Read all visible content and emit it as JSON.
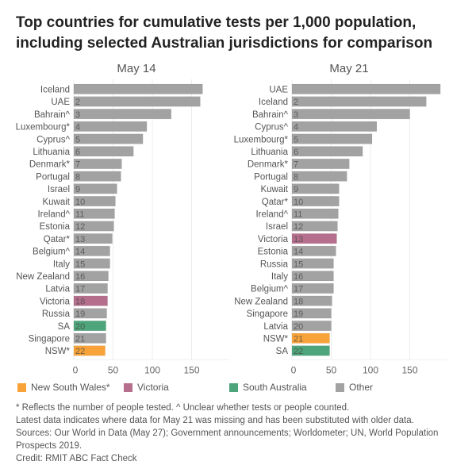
{
  "title_line1": "Top countries for cumulative tests per 1,000 population,",
  "title_line2": "including selected Australian jurisdictions for comparison",
  "colors": {
    "nsw": "#f8a339",
    "victoria": "#b56f8d",
    "sa": "#4fa57b",
    "other": "#a2a2a2",
    "grid": "#ececec"
  },
  "chart_data": [
    {
      "type": "bar",
      "orientation": "horizontal",
      "title": "May 14",
      "xlim": [
        0,
        198
      ],
      "xticks": [
        "0",
        "50",
        "100",
        "150"
      ],
      "grid": true,
      "categories": [
        "Iceland",
        "UAE",
        "Bahrain^",
        "Luxembourg*",
        "Cyprus^",
        "Lithuania",
        "Denmark*",
        "Portugal",
        "Israel",
        "Kuwait",
        "Ireland^",
        "Estonia",
        "Qatar*",
        "Belgium^",
        "Italy",
        "New Zealand",
        "Latvia",
        "Victoria",
        "Russia",
        "SA",
        "Singapore",
        "NSW*"
      ],
      "ranks": [
        "",
        "2",
        "3",
        "4",
        "5",
        "6",
        "7",
        "8",
        "9",
        "10",
        "11",
        "12",
        "13",
        "14",
        "15",
        "16",
        "17",
        "18",
        "19",
        "20",
        "21",
        "22"
      ],
      "values": [
        164,
        161,
        124,
        93,
        88,
        76,
        61,
        60,
        55,
        53,
        52,
        51,
        49,
        46,
        46,
        44,
        43,
        43,
        42,
        41,
        41,
        40
      ],
      "groups": [
        "other",
        "other",
        "other",
        "other",
        "other",
        "other",
        "other",
        "other",
        "other",
        "other",
        "other",
        "other",
        "other",
        "other",
        "other",
        "other",
        "other",
        "victoria",
        "other",
        "sa",
        "other",
        "nsw"
      ]
    },
    {
      "type": "bar",
      "orientation": "horizontal",
      "title": "May 21",
      "xlim": [
        0,
        198
      ],
      "xticks": [
        "0",
        "50",
        "100",
        "150"
      ],
      "grid": true,
      "categories": [
        "UAE",
        "Iceland",
        "Bahrain^",
        "Cyprus^",
        "Luxembourg*",
        "Lithuania",
        "Denmark*",
        "Portugal",
        "Kuwait",
        "Qatar*",
        "Ireland^",
        "Israel",
        "Victoria",
        "Estonia",
        "Russia",
        "Italy",
        "Belgium^",
        "New Zealand",
        "Singapore",
        "Latvia",
        "NSW*",
        "SA"
      ],
      "ranks": [
        "",
        "2",
        "3",
        "4",
        "5",
        "6",
        "7",
        "8",
        "9",
        "10",
        "11",
        "12",
        "13",
        "14",
        "15",
        "16",
        "17",
        "18",
        "19",
        "20",
        "21",
        "22"
      ],
      "values": [
        189,
        171,
        150,
        108,
        102,
        90,
        73,
        70,
        60,
        60,
        59,
        58,
        57,
        56,
        53,
        53,
        53,
        51,
        50,
        50,
        48,
        48
      ],
      "groups": [
        "other",
        "other",
        "other",
        "other",
        "other",
        "other",
        "other",
        "other",
        "other",
        "other",
        "other",
        "other",
        "victoria",
        "other",
        "other",
        "other",
        "other",
        "other",
        "other",
        "other",
        "nsw",
        "sa"
      ]
    }
  ],
  "legend": [
    {
      "label": "New South Wales*",
      "group": "nsw"
    },
    {
      "label": "Victoria",
      "group": "victoria"
    },
    {
      "label": "South Australia",
      "group": "sa"
    },
    {
      "label": "Other",
      "group": "other"
    }
  ],
  "notes": [
    "* Reflects the number of people tested. ^ Unclear whether tests or people counted.",
    "Latest data indicates where data for May 21 was missing and has been substituted with older data.",
    "Sources: Our World in Data (May 27); Government announcements; Worldometer; UN, World Population",
    "Prospects 2019.",
    "Credit: RMIT ABC Fact Check"
  ]
}
